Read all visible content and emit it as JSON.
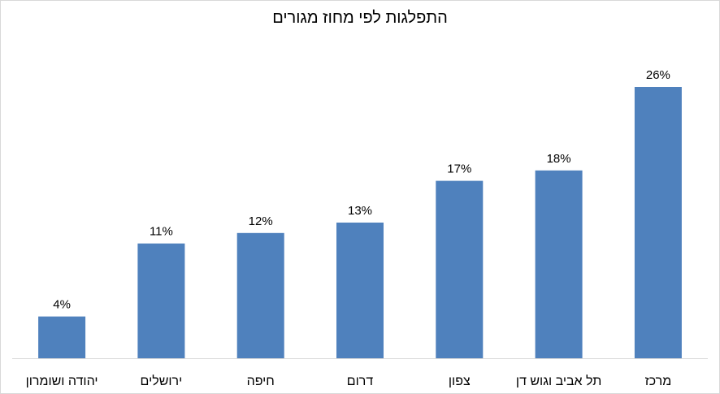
{
  "chart_data": {
    "type": "bar",
    "title": "התפלגות לפי מחוז מגורים",
    "categories": [
      "יהודה ושומרון",
      "ירושלים",
      "חיפה",
      "דרום",
      "צפון",
      "תל אביב וגוש דן",
      "מרכז"
    ],
    "values": [
      4,
      11,
      12,
      13,
      17,
      18,
      26
    ],
    "data_labels": [
      "4%",
      "11%",
      "12%",
      "13%",
      "17%",
      "18%",
      "26%"
    ],
    "unit": "%",
    "ylim": [
      0,
      30
    ],
    "xlabel": "",
    "ylabel": "",
    "grid": false,
    "legend": "none",
    "bar_color": "#4f81bd"
  }
}
